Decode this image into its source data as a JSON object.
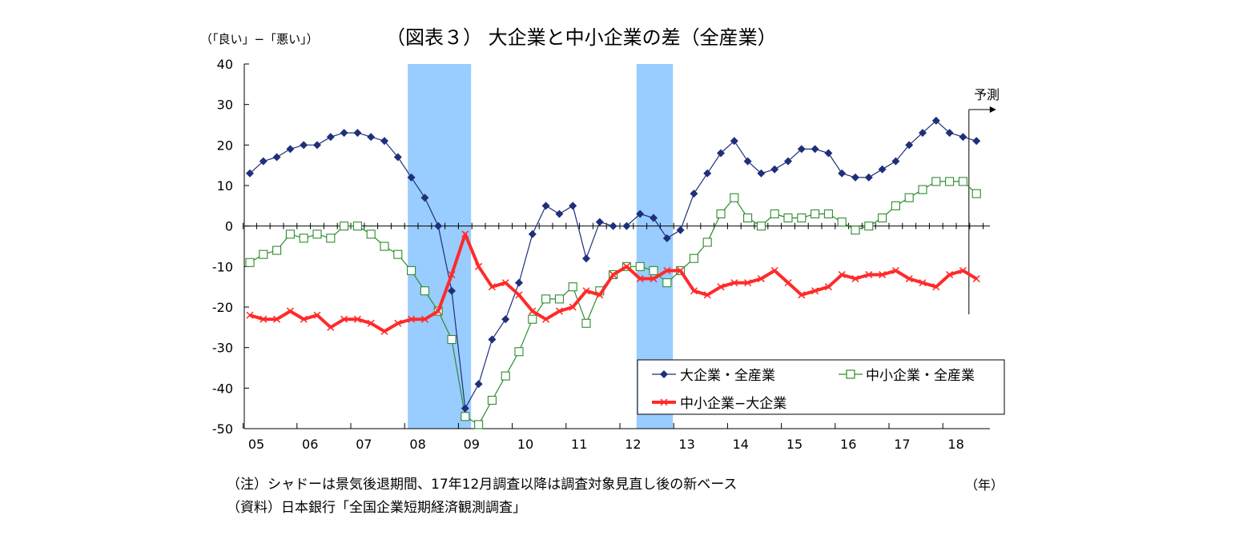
{
  "chart_data": {
    "type": "line",
    "title": "（図表３） 大企業と中小企業の差（全産業）",
    "ylabel": "（「良い」−「悪い」）",
    "xlabel": "（年）",
    "ylim": [
      -50,
      40
    ],
    "yticks": [
      40,
      30,
      20,
      10,
      0,
      -10,
      -20,
      -30,
      -40,
      -50
    ],
    "ytick_labels": [
      "40",
      "30",
      "20",
      "10",
      "0",
      "-10",
      "-20",
      "-30",
      "-40",
      "-50"
    ],
    "year_labels": [
      "05",
      "06",
      "07",
      "08",
      "09",
      "10",
      "11",
      "12",
      "13",
      "14",
      "15",
      "16",
      "17",
      "18"
    ],
    "x_unit": "quarter",
    "x_start": "2005Q1",
    "forecast_label": "予測",
    "recession_shading": [
      {
        "start": "2008Q1",
        "end": "2009Q1"
      },
      {
        "start": "2012Q2",
        "end": "2012Q4"
      }
    ],
    "legend_position": "bottom-right",
    "series": [
      {
        "name": "大企業・全産業",
        "color": "#1f2f7a",
        "marker": "diamond",
        "values": [
          13,
          16,
          17,
          19,
          20,
          20,
          22,
          23,
          23,
          22,
          21,
          17,
          12,
          7,
          0,
          -16,
          -45,
          -39,
          -28,
          -23,
          -14,
          -2,
          5,
          3,
          5,
          -8,
          1,
          0,
          0,
          3,
          2,
          -3,
          -1,
          8,
          13,
          18,
          21,
          16,
          13,
          14,
          16,
          19,
          19,
          18,
          13,
          12,
          12,
          14,
          16,
          20,
          23,
          26,
          23,
          22,
          21
        ]
      },
      {
        "name": "中小企業・全産業",
        "color": "#2e8b2e",
        "marker": "square",
        "values": [
          -9,
          -7,
          -6,
          -2,
          -3,
          -2,
          -3,
          0,
          0,
          -2,
          -5,
          -7,
          -11,
          -16,
          -21,
          -28,
          -47,
          -49,
          -43,
          -37,
          -31,
          -23,
          -18,
          -18,
          -15,
          -24,
          -16,
          -12,
          -10,
          -10,
          -11,
          -14,
          -11,
          -8,
          -4,
          3,
          7,
          2,
          0,
          3,
          2,
          2,
          3,
          3,
          1,
          -1,
          0,
          2,
          5,
          7,
          9,
          11,
          11,
          11,
          8
        ]
      },
      {
        "name": "中小企業−大企業",
        "color": "#ff2a2a",
        "marker": "x",
        "values": [
          -22,
          -23,
          -23,
          -21,
          -23,
          -22,
          -25,
          -23,
          -23,
          -24,
          -26,
          -24,
          -23,
          -23,
          -21,
          -12,
          -2,
          -10,
          -15,
          -14,
          -17,
          -21,
          -23,
          -21,
          -20,
          -16,
          -17,
          -12,
          -10,
          -13,
          -13,
          -11,
          -11,
          -16,
          -17,
          -15,
          -14,
          -14,
          -13,
          -11,
          -14,
          -17,
          -16,
          -15,
          -12,
          -13,
          -12,
          -12,
          -11,
          -13,
          -14,
          -15,
          -12,
          -11,
          -13
        ]
      }
    ]
  },
  "notes": {
    "note1": "（注）シャドーは景気後退期間、17年12月調査以降は調査対象見直し後の新ベース",
    "note2": "（資料）日本銀行「全国企業短期経済観測調査」"
  }
}
